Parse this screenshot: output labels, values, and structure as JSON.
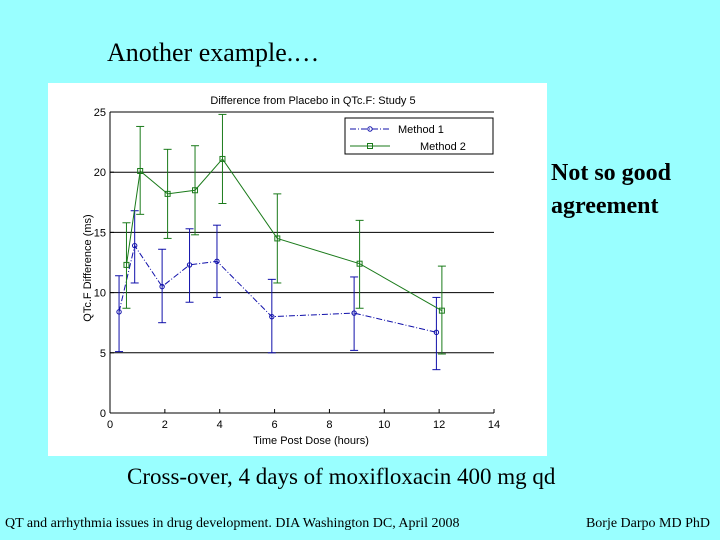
{
  "slide": {
    "title": "Another example.…",
    "callout": "Not so good agreement",
    "caption": "Cross-over, 4 days of moxifloxacin 400 mg qd",
    "footer_left": "QT and arrhythmia issues in drug development. DIA Washington DC, April 2008",
    "footer_right": "Borje Darpo MD PhD"
  },
  "colors": {
    "background": "#99ffff",
    "method1": "#1010aa",
    "method2": "#1a7a1a",
    "grid": "#000000"
  },
  "chart_data": {
    "type": "line",
    "title": "Difference from Placebo in QTc.F: Study 5",
    "xlabel": "Time Post Dose (hours)",
    "ylabel": "QTc.F Difference (ms)",
    "xlim": [
      0,
      14
    ],
    "ylim": [
      0,
      25
    ],
    "xticks": [
      0,
      2,
      4,
      6,
      8,
      10,
      12,
      14
    ],
    "yticks": [
      0,
      5,
      10,
      15,
      20,
      25
    ],
    "grid": "horizontal",
    "legend_position": "top-right",
    "series": [
      {
        "name": "Method 1",
        "marker": "circle",
        "line": "dashdot",
        "color": "#1010aa",
        "x": [
          0.33,
          0.9,
          1.9,
          2.9,
          3.9,
          5.9,
          8.9,
          11.9
        ],
        "y": [
          8.4,
          13.9,
          10.5,
          12.3,
          12.6,
          8.0,
          8.3,
          6.7
        ],
        "err_low": [
          5.1,
          10.8,
          7.5,
          9.2,
          9.6,
          5.0,
          5.2,
          3.6
        ],
        "err_high": [
          11.4,
          16.8,
          13.6,
          15.3,
          15.6,
          11.1,
          11.3,
          9.6
        ]
      },
      {
        "name": "Method 2",
        "marker": "square",
        "line": "solid",
        "color": "#1a7a1a",
        "x": [
          0.6,
          1.1,
          2.1,
          3.1,
          4.1,
          6.1,
          9.1,
          12.1
        ],
        "y": [
          12.3,
          20.1,
          18.2,
          18.5,
          21.1,
          14.5,
          12.4,
          8.5
        ],
        "err_low": [
          8.7,
          16.5,
          14.5,
          14.8,
          17.4,
          10.8,
          8.7,
          4.9
        ],
        "err_high": [
          15.8,
          23.8,
          21.9,
          22.2,
          24.8,
          18.2,
          16.0,
          12.2
        ]
      }
    ]
  }
}
